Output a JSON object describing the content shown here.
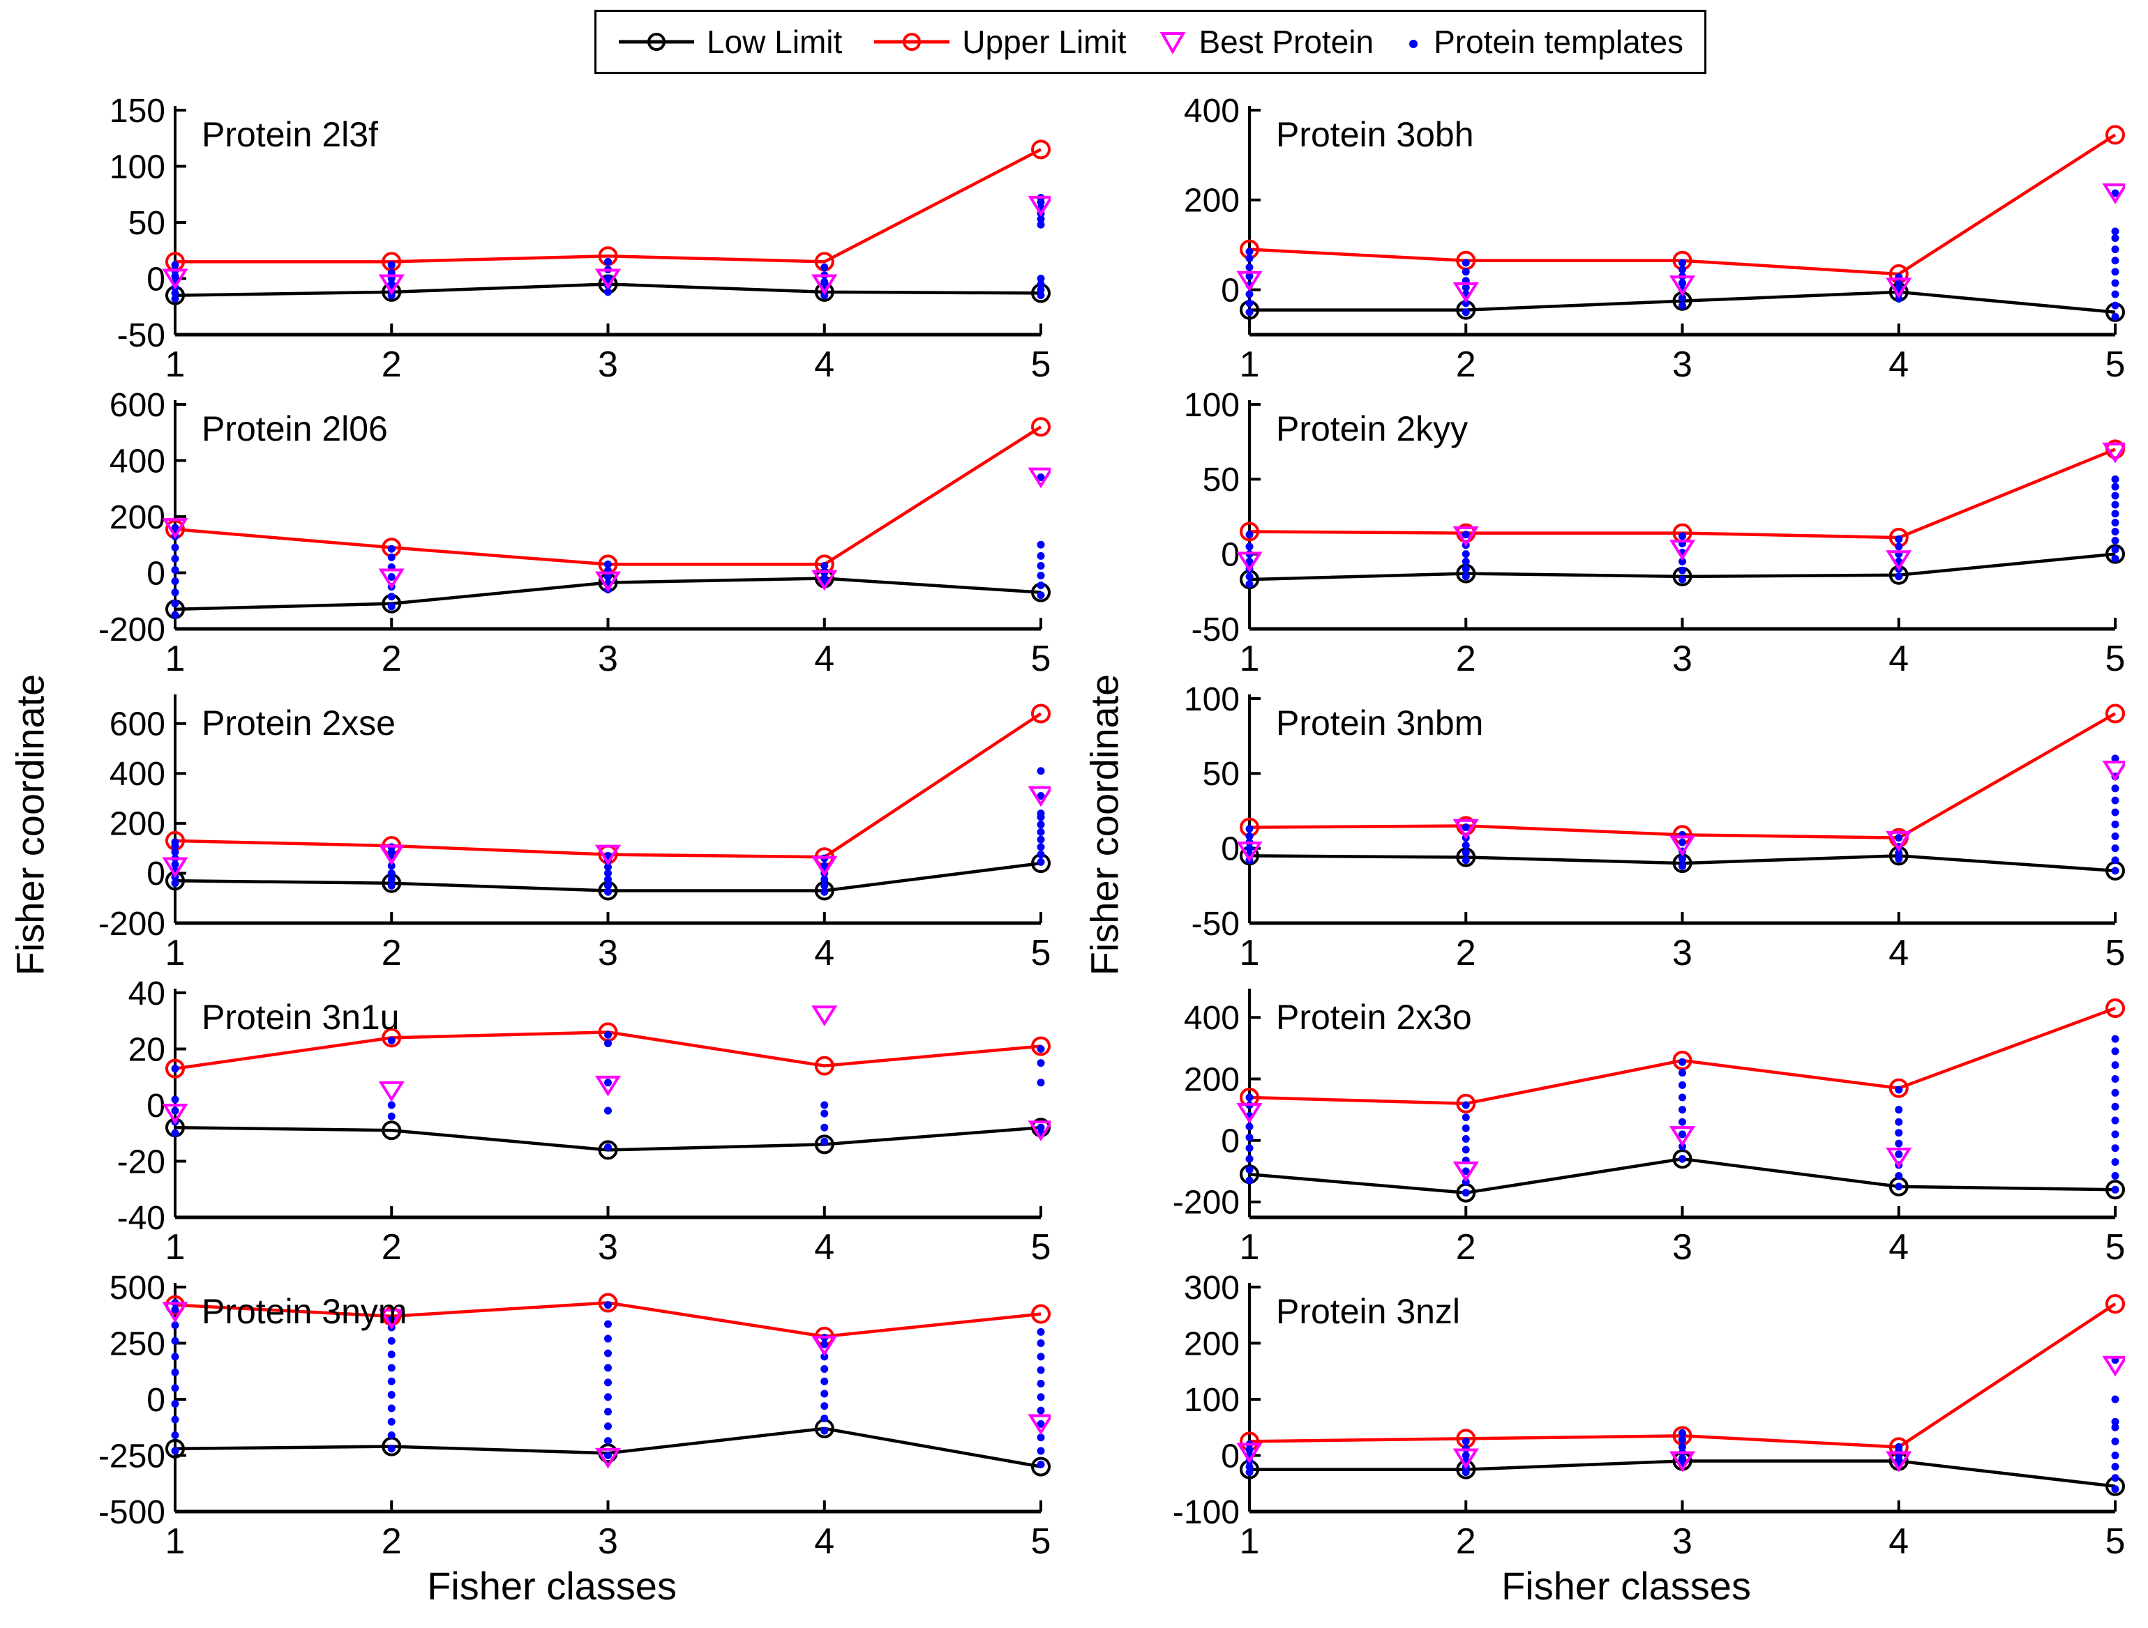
{
  "labels": {
    "ylabel": "Fisher coordinate",
    "xlabel": "Fisher classes"
  },
  "legend": {
    "items": [
      {
        "id": "low",
        "label": "Low Limit",
        "marker": "line-circle",
        "color": "#000000"
      },
      {
        "id": "upper",
        "label": "Upper Limit",
        "marker": "line-circle",
        "color": "#ff0000"
      },
      {
        "id": "best",
        "label": "Best Protein",
        "marker": "triangle-down",
        "color": "#ff00ff"
      },
      {
        "id": "templates",
        "label": "Protein templates",
        "marker": "dot",
        "color": "#0000ff"
      }
    ]
  },
  "chart_data": {
    "type": "line",
    "x": [
      1,
      2,
      3,
      4,
      5
    ],
    "xlabel": "Fisher classes",
    "ylabel": "Fisher coordinate",
    "legend_position": "top-center",
    "grid": false,
    "colors": {
      "low": "#000000",
      "upper": "#ff0000",
      "best": "#ff00ff",
      "templates": "#0000ff"
    },
    "series_names": [
      "Low Limit",
      "Upper Limit",
      "Best Protein",
      "Protein templates"
    ],
    "plots": [
      {
        "name": "Protein 2l3f",
        "column": "left",
        "row": 1,
        "ylim": [
          -50,
          150
        ],
        "yticks": [
          -50,
          0,
          50,
          100,
          150
        ],
        "upper": [
          15,
          15,
          20,
          15,
          115
        ],
        "low": [
          -15,
          -12,
          -5,
          -12,
          -13
        ],
        "best": [
          0,
          -5,
          0,
          -5,
          65
        ],
        "templates": [
          [
            -18,
            -13,
            -8,
            -3,
            2,
            7,
            12
          ],
          [
            -15,
            -10,
            -5,
            0,
            5,
            12
          ],
          [
            -12,
            -6,
            0,
            8,
            15
          ],
          [
            -15,
            -9,
            -3,
            3,
            10
          ],
          [
            -15,
            -10,
            -5,
            0,
            48,
            53,
            58,
            63,
            68,
            72
          ]
        ]
      },
      {
        "name": "Protein 3obh",
        "column": "right",
        "row": 1,
        "ylim": [
          -100,
          400
        ],
        "yticks": [
          0,
          200,
          400
        ],
        "upper": [
          90,
          65,
          65,
          35,
          345
        ],
        "low": [
          -45,
          -45,
          -25,
          -5,
          -50
        ],
        "best": [
          20,
          -5,
          10,
          5,
          215
        ],
        "templates": [
          [
            -50,
            -30,
            -10,
            10,
            30,
            50,
            70,
            85
          ],
          [
            -50,
            -30,
            -10,
            5,
            20,
            40,
            60
          ],
          [
            -35,
            -18,
            0,
            15,
            30,
            45,
            60
          ],
          [
            -20,
            -8,
            5,
            15,
            28
          ],
          [
            -60,
            -35,
            -10,
            15,
            40,
            65,
            90,
            115,
            130,
            215
          ]
        ]
      },
      {
        "name": "Protein 2l06",
        "column": "left",
        "row": 2,
        "ylim": [
          -200,
          600
        ],
        "yticks": [
          -200,
          0,
          200,
          400,
          600
        ],
        "upper": [
          155,
          90,
          30,
          30,
          520
        ],
        "low": [
          -130,
          -110,
          -35,
          -20,
          -70
        ],
        "best": [
          160,
          -20,
          -30,
          -25,
          340
        ],
        "templates": [
          [
            -150,
            -110,
            -70,
            -30,
            10,
            50,
            90,
            130,
            160
          ],
          [
            -120,
            -85,
            -50,
            -15,
            20,
            55,
            85
          ],
          [
            -60,
            -38,
            -15,
            8,
            30
          ],
          [
            -40,
            -20,
            0,
            25
          ],
          [
            -80,
            -45,
            -10,
            25,
            60,
            100,
            340
          ]
        ]
      },
      {
        "name": "Protein 2kyy",
        "column": "right",
        "row": 2,
        "ylim": [
          -50,
          100
        ],
        "yticks": [
          -50,
          0,
          50,
          100
        ],
        "upper": [
          15,
          14,
          14,
          11,
          70
        ],
        "low": [
          -17,
          -13,
          -15,
          -14,
          0
        ],
        "best": [
          -5,
          12,
          3,
          -4,
          68
        ],
        "templates": [
          [
            -20,
            -15,
            -10,
            -5,
            0,
            5,
            13
          ],
          [
            -15,
            -10,
            -5,
            0,
            6,
            13
          ],
          [
            -17,
            -11,
            -5,
            1,
            7,
            12
          ],
          [
            -15,
            -10,
            -5,
            0,
            5,
            10
          ],
          [
            -3,
            3,
            9,
            15,
            21,
            27,
            33,
            39,
            45,
            50
          ]
        ]
      },
      {
        "name": "Protein 2xse",
        "column": "left",
        "row": 3,
        "ylim": [
          -200,
          700
        ],
        "yticks": [
          -200,
          0,
          200,
          400,
          600
        ],
        "upper": [
          130,
          110,
          75,
          65,
          640
        ],
        "low": [
          -30,
          -40,
          -70,
          -70,
          40
        ],
        "best": [
          25,
          75,
          75,
          30,
          310
        ],
        "templates": [
          [
            -40,
            -15,
            10,
            35,
            60,
            85,
            110,
            125
          ],
          [
            -50,
            -25,
            0,
            30,
            60,
            85,
            105
          ],
          [
            -75,
            -50,
            -25,
            0,
            25,
            50,
            70
          ],
          [
            -75,
            -50,
            -25,
            0,
            30,
            60
          ],
          [
            45,
            75,
            105,
            135,
            165,
            195,
            225,
            240,
            310,
            410
          ]
        ]
      },
      {
        "name": "Protein 3nbm",
        "column": "right",
        "row": 3,
        "ylim": [
          -50,
          100
        ],
        "yticks": [
          -50,
          0,
          50,
          100
        ],
        "upper": [
          14,
          15,
          9,
          7,
          90
        ],
        "low": [
          -5,
          -6,
          -10,
          -5,
          -15
        ],
        "best": [
          -2,
          13,
          2,
          5,
          52
        ],
        "templates": [
          [
            -8,
            -4,
            0,
            4,
            8,
            13
          ],
          [
            -8,
            -3,
            2,
            7,
            14
          ],
          [
            -12,
            -7,
            -2,
            4,
            9
          ],
          [
            -7,
            -3,
            1,
            7
          ],
          [
            -15,
            -8,
            0,
            8,
            16,
            24,
            32,
            40,
            48,
            60
          ]
        ]
      },
      {
        "name": "Protein 3n1u",
        "column": "left",
        "row": 4,
        "ylim": [
          -40,
          40
        ],
        "yticks": [
          -40,
          -20,
          0,
          20,
          40
        ],
        "upper": [
          13,
          24,
          26,
          14,
          21
        ],
        "low": [
          -8,
          -9,
          -16,
          -14,
          -8
        ],
        "best": [
          -3,
          5,
          7,
          32,
          -9
        ],
        "templates": [
          [
            -10,
            -6,
            -2,
            2,
            13
          ],
          [
            -4,
            0,
            23
          ],
          [
            -15,
            -2,
            8,
            22,
            25
          ],
          [
            -13,
            -8,
            -3,
            0
          ],
          [
            -10,
            -8,
            8,
            15,
            20
          ]
        ]
      },
      {
        "name": "Protein 2x3o",
        "column": "right",
        "row": 4,
        "ylim": [
          -250,
          480
        ],
        "yticks": [
          -200,
          0,
          200,
          400
        ],
        "upper": [
          140,
          120,
          260,
          170,
          430
        ],
        "low": [
          -110,
          -170,
          -60,
          -150,
          -160
        ],
        "best": [
          90,
          -100,
          15,
          -55,
          null
        ],
        "templates": [
          [
            -130,
            -95,
            -60,
            -25,
            10,
            45,
            80,
            115,
            140
          ],
          [
            -170,
            -135,
            -100,
            -65,
            -30,
            5,
            40,
            75,
            115
          ],
          [
            -60,
            -20,
            20,
            60,
            100,
            140,
            180,
            220,
            255
          ],
          [
            -150,
            -115,
            -80,
            -45,
            -10,
            25,
            60,
            100,
            165
          ],
          [
            -160,
            -115,
            -70,
            -25,
            20,
            65,
            110,
            155,
            200,
            245,
            290,
            330
          ]
        ]
      },
      {
        "name": "Protein 3nym",
        "column": "left",
        "row": 5,
        "ylim": [
          -500,
          500
        ],
        "yticks": [
          -500,
          -250,
          0,
          250,
          500
        ],
        "upper": [
          420,
          370,
          430,
          280,
          380
        ],
        "low": [
          -220,
          -210,
          -240,
          -130,
          -300
        ],
        "best": [
          390,
          360,
          -260,
          240,
          -110
        ],
        "templates": [
          [
            -230,
            -160,
            -90,
            -20,
            50,
            120,
            190,
            260,
            330,
            400,
            430
          ],
          [
            -220,
            -160,
            -100,
            -40,
            20,
            80,
            140,
            200,
            260,
            320,
            355
          ],
          [
            -250,
            -185,
            -120,
            -55,
            10,
            75,
            140,
            205,
            270,
            335,
            420
          ],
          [
            -140,
            -85,
            -30,
            25,
            80,
            135,
            190,
            245,
            275
          ],
          [
            -290,
            -230,
            -170,
            -110,
            -50,
            10,
            70,
            130,
            190,
            250,
            300
          ]
        ]
      },
      {
        "name": "Protein 3nzl",
        "column": "right",
        "row": 5,
        "ylim": [
          -100,
          300
        ],
        "yticks": [
          -100,
          0,
          100,
          200,
          300
        ],
        "upper": [
          25,
          30,
          35,
          15,
          270
        ],
        "low": [
          -25,
          -25,
          -10,
          -10,
          -55
        ],
        "best": [
          5,
          -5,
          -10,
          -10,
          160
        ],
        "templates": [
          [
            -30,
            -20,
            -10,
            0,
            10,
            20
          ],
          [
            -30,
            -20,
            -10,
            0,
            12,
            25
          ],
          [
            -15,
            -5,
            5,
            15,
            28,
            40
          ],
          [
            -15,
            -8,
            0,
            8,
            15
          ],
          [
            -60,
            -40,
            -20,
            0,
            25,
            50,
            60,
            100,
            170
          ]
        ]
      }
    ]
  }
}
